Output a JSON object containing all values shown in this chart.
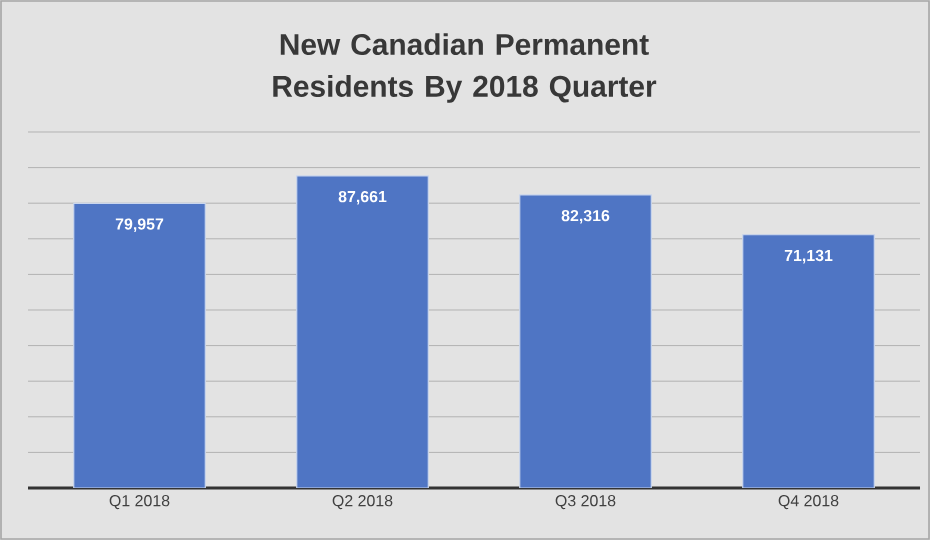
{
  "chart_data": {
    "type": "bar",
    "title": "New Canadian Permanent Residents By 2018 Quarter",
    "categories": [
      "Q1 2018",
      "Q2 2018",
      "Q3 2018",
      "Q4 2018"
    ],
    "values": [
      79957,
      87661,
      82316,
      71131
    ],
    "value_labels": [
      "79,957",
      "87,661",
      "82,316",
      "71,131"
    ],
    "color": "#4f75c4",
    "ylim": [
      0,
      100000
    ],
    "grid": "y",
    "tick_labels": "x"
  }
}
